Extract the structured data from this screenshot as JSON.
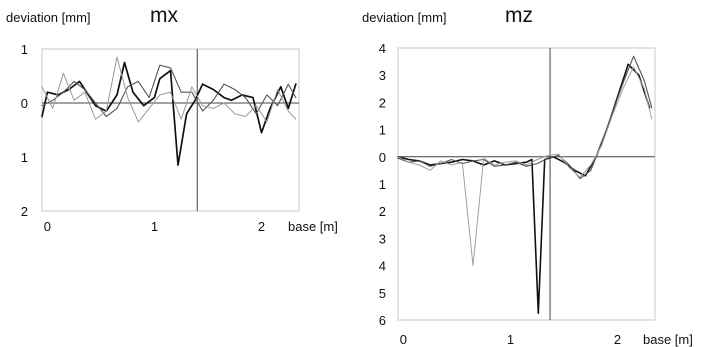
{
  "chart_data": [
    {
      "type": "line",
      "title": "mx",
      "ylabel": "deviation [mm]",
      "xlabel": "base [m]",
      "xlim": [
        -0.05,
        2.35
      ],
      "ylim": [
        -2,
        1
      ],
      "x_ticks": [
        0,
        1,
        2
      ],
      "y_ticks": [
        {
          "value": 1,
          "label": "1"
        },
        {
          "value": 0,
          "label": "0"
        },
        {
          "value": -1,
          "label": "1"
        },
        {
          "value": -2,
          "label": "2"
        }
      ],
      "vline": 1.4,
      "grid": false,
      "series": [
        {
          "color": "#111111",
          "width": 1.7,
          "x": [
            -0.05,
            0.0,
            0.1,
            0.2,
            0.3,
            0.4,
            0.45,
            0.55,
            0.65,
            0.72,
            0.8,
            0.9,
            1.0,
            1.05,
            1.15,
            1.22,
            1.3,
            1.38,
            1.45,
            1.55,
            1.65,
            1.72,
            1.82,
            1.92,
            2.0,
            2.08,
            2.18,
            2.25,
            2.32
          ],
          "y": [
            -0.25,
            0.2,
            0.15,
            0.25,
            0.4,
            0.1,
            -0.05,
            -0.15,
            0.15,
            0.75,
            0.2,
            -0.05,
            0.1,
            0.45,
            0.6,
            -1.15,
            -0.2,
            0.05,
            0.35,
            0.25,
            0.1,
            0.05,
            0.15,
            0.1,
            -0.55,
            -0.1,
            0.3,
            -0.1,
            0.35
          ]
        },
        {
          "color": "#555555",
          "width": 1.1,
          "x": [
            -0.05,
            0.05,
            0.15,
            0.25,
            0.35,
            0.45,
            0.55,
            0.65,
            0.75,
            0.85,
            0.95,
            1.05,
            1.15,
            1.25,
            1.35,
            1.45,
            1.55,
            1.65,
            1.75,
            1.85,
            1.95,
            2.05,
            2.15,
            2.25,
            2.32
          ],
          "y": [
            -0.05,
            0.05,
            0.2,
            0.4,
            0.25,
            0.0,
            -0.25,
            -0.1,
            0.3,
            0.4,
            0.1,
            0.7,
            0.65,
            0.2,
            0.2,
            -0.15,
            0.05,
            0.35,
            0.25,
            0.1,
            -0.2,
            0.15,
            -0.05,
            0.35,
            0.1
          ]
        },
        {
          "color": "#9a9a9a",
          "width": 1.0,
          "x": [
            -0.05,
            0.05,
            0.15,
            0.25,
            0.35,
            0.45,
            0.55,
            0.65,
            0.75,
            0.85,
            0.95,
            1.05,
            1.15,
            1.25,
            1.35,
            1.45,
            1.55,
            1.65,
            1.75,
            1.85,
            1.95,
            2.05,
            2.15,
            2.25,
            2.32
          ],
          "y": [
            0.3,
            -0.1,
            0.55,
            0.05,
            0.2,
            -0.3,
            -0.15,
            0.85,
            0.1,
            -0.35,
            -0.1,
            0.15,
            0.2,
            -0.3,
            0.3,
            -0.05,
            -0.1,
            0.0,
            -0.2,
            -0.25,
            -0.05,
            -0.35,
            0.25,
            -0.15,
            -0.3
          ]
        }
      ]
    },
    {
      "type": "line",
      "title": "mz",
      "ylabel": "deviation [mm]",
      "xlabel": "base [m]",
      "xlim": [
        -0.05,
        2.35
      ],
      "ylim": [
        -6,
        4
      ],
      "x_ticks": [
        0,
        1,
        2
      ],
      "y_ticks": [
        {
          "value": 4,
          "label": "4"
        },
        {
          "value": 3,
          "label": "3"
        },
        {
          "value": 2,
          "label": "2"
        },
        {
          "value": 1,
          "label": "1"
        },
        {
          "value": 0,
          "label": "0"
        },
        {
          "value": -1,
          "label": "1"
        },
        {
          "value": -2,
          "label": "2"
        },
        {
          "value": -3,
          "label": "3"
        },
        {
          "value": -4,
          "label": "4"
        },
        {
          "value": -5,
          "label": "5"
        },
        {
          "value": -6,
          "label": "6"
        }
      ],
      "vline": 1.37,
      "grid": false,
      "series": [
        {
          "color": "#111111",
          "width": 1.6,
          "x": [
            -0.05,
            0.05,
            0.15,
            0.25,
            0.35,
            0.45,
            0.55,
            0.65,
            0.75,
            0.85,
            0.95,
            1.05,
            1.15,
            1.2,
            1.26,
            1.32,
            1.4,
            1.5,
            1.6,
            1.7,
            1.8,
            1.9,
            2.0,
            2.1,
            2.2,
            2.3
          ],
          "y": [
            0.0,
            -0.1,
            -0.15,
            -0.3,
            -0.25,
            -0.2,
            -0.1,
            -0.15,
            -0.3,
            -0.15,
            -0.3,
            -0.25,
            -0.2,
            -0.1,
            -5.75,
            -0.1,
            0.0,
            -0.2,
            -0.5,
            -0.7,
            0.0,
            1.0,
            2.2,
            3.4,
            3.0,
            1.8
          ]
        },
        {
          "color": "#555555",
          "width": 1.1,
          "x": [
            -0.05,
            0.05,
            0.15,
            0.25,
            0.35,
            0.45,
            0.55,
            0.65,
            0.75,
            0.85,
            0.95,
            1.05,
            1.15,
            1.25,
            1.35,
            1.45,
            1.55,
            1.65,
            1.75,
            1.85,
            1.95,
            2.05,
            2.15,
            2.25,
            2.32
          ],
          "y": [
            -0.05,
            -0.2,
            -0.15,
            -0.35,
            -0.25,
            -0.1,
            -0.25,
            -0.15,
            -0.1,
            -0.35,
            -0.3,
            -0.2,
            -0.35,
            -0.25,
            -0.05,
            0.05,
            -0.3,
            -0.8,
            -0.5,
            0.5,
            1.6,
            2.7,
            3.7,
            2.8,
            1.8
          ]
        },
        {
          "color": "#a0a0a0",
          "width": 1.0,
          "x": [
            -0.05,
            0.05,
            0.15,
            0.25,
            0.35,
            0.45,
            0.55,
            0.65,
            0.75,
            0.85,
            0.95,
            1.05,
            1.15,
            1.25,
            1.35,
            1.45,
            1.55,
            1.65,
            1.75,
            1.85,
            1.95,
            2.05,
            2.15,
            2.25,
            2.32
          ],
          "y": [
            0.0,
            -0.2,
            -0.3,
            -0.5,
            -0.15,
            -0.3,
            -0.2,
            -4.0,
            -0.05,
            -0.3,
            -0.2,
            -0.15,
            -0.3,
            -0.1,
            0.05,
            0.1,
            -0.4,
            -0.75,
            -0.3,
            0.4,
            1.5,
            2.5,
            3.3,
            2.5,
            1.4
          ]
        }
      ]
    }
  ]
}
